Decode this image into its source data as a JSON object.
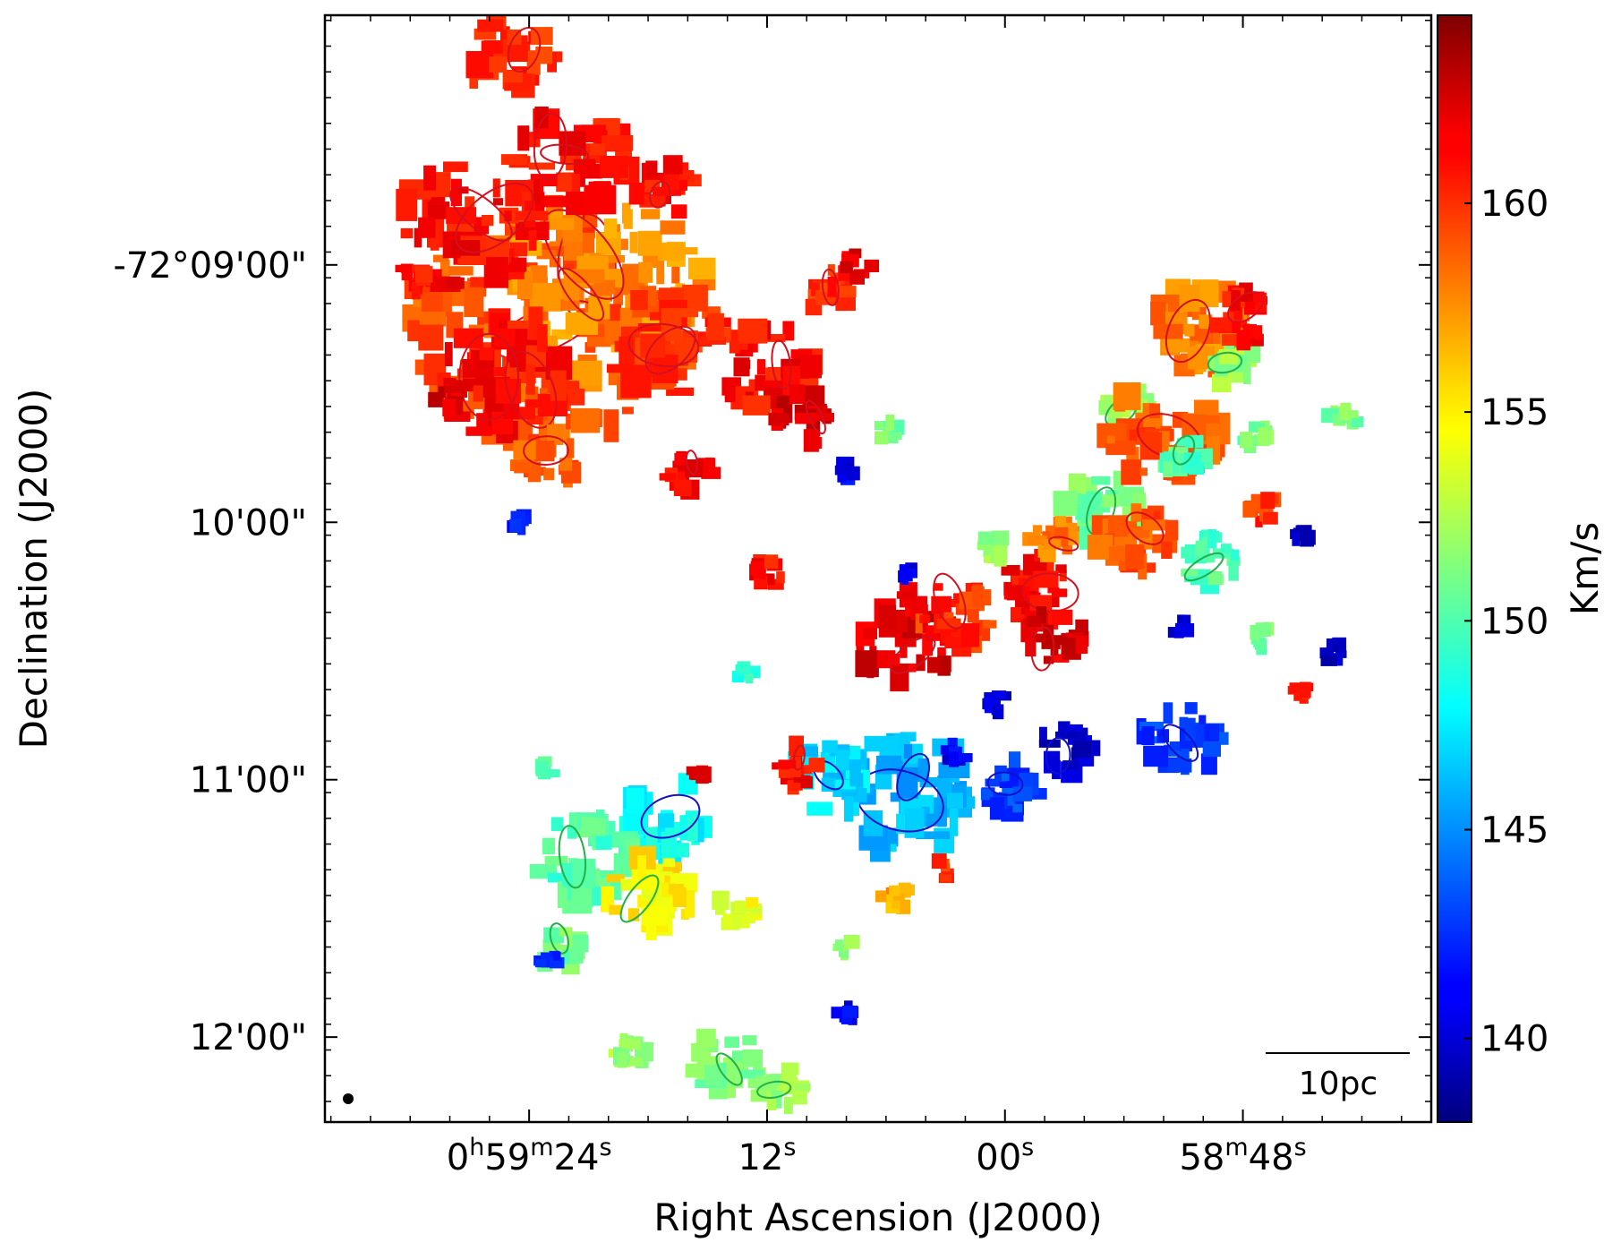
{
  "chart_data": {
    "type": "heatmap",
    "title": "",
    "xlabel": "Right Ascension (J2000)",
    "ylabel": "Declination (J2000)",
    "x_ticks": [
      {
        "label": "0h59m24s",
        "parts": [
          {
            "t": "0",
            "sup": false
          },
          {
            "t": "h",
            "sup": true
          },
          {
            "t": "59",
            "sup": false
          },
          {
            "t": "m",
            "sup": true
          },
          {
            "t": "24",
            "sup": false
          },
          {
            "t": "s",
            "sup": true
          }
        ],
        "value_s": 24
      },
      {
        "label": "12s",
        "parts": [
          {
            "t": "12",
            "sup": false
          },
          {
            "t": "s",
            "sup": true
          }
        ],
        "value_s": 12
      },
      {
        "label": "00s",
        "parts": [
          {
            "t": "00",
            "sup": false
          },
          {
            "t": "s",
            "sup": true
          }
        ],
        "value_s": 0
      },
      {
        "label": "58m48s",
        "parts": [
          {
            "t": "58",
            "sup": false
          },
          {
            "t": "m",
            "sup": true
          },
          {
            "t": "48",
            "sup": false
          },
          {
            "t": "s",
            "sup": true
          }
        ],
        "value_s": -12
      }
    ],
    "y_ticks": [
      {
        "label": "-72°09'00\"",
        "value_arcmin": 9
      },
      {
        "label": "10'00\"",
        "value_arcmin": 10
      },
      {
        "label": "11'00\"",
        "value_arcmin": 11
      },
      {
        "label": "12'00\"",
        "value_arcmin": 12
      }
    ],
    "xlim_s": [
      34.3,
      -21.5
    ],
    "ylim_arcmin": [
      8.03,
      12.33
    ],
    "colorbar": {
      "label": "Km/s",
      "range": [
        138,
        164.5
      ],
      "ticks": [
        140,
        145,
        150,
        155,
        160
      ],
      "colormap": "jet"
    },
    "scalebar": {
      "label": "10pc"
    },
    "clumps": [
      {
        "ra": 23,
        "dec": 9.22,
        "v": 159,
        "size": 7
      },
      {
        "ra": 25,
        "dec": 8.2,
        "v": 160,
        "size": 2.2
      },
      {
        "ra": 22,
        "dec": 8.6,
        "v": 161,
        "size": 3
      },
      {
        "ra": 20,
        "dec": 9.1,
        "v": 157.5,
        "size": 5
      },
      {
        "ra": 17,
        "dec": 9.3,
        "v": 160,
        "size": 3
      },
      {
        "ra": 27,
        "dec": 8.85,
        "v": 161,
        "size": 3.5
      },
      {
        "ra": 25,
        "dec": 9.45,
        "v": 161,
        "size": 3.5
      },
      {
        "ra": 12,
        "dec": 9.4,
        "v": 161,
        "size": 2.5
      },
      {
        "ra": 17,
        "dec": 8.7,
        "v": 161,
        "size": 1.5
      },
      {
        "ra": 9,
        "dec": 9.1,
        "v": 160,
        "size": 1.2
      },
      {
        "ra": 10,
        "dec": 9.6,
        "v": 162,
        "size": 1.5
      },
      {
        "ra": 23,
        "dec": 9.75,
        "v": 159,
        "size": 1.5
      },
      {
        "ra": 16,
        "dec": 9.8,
        "v": 161,
        "size": 1.2
      },
      {
        "ra": 30,
        "dec": 9.05,
        "v": 161,
        "size": 0.8
      },
      {
        "ra": 28,
        "dec": 9.5,
        "v": 162,
        "size": 0.8
      },
      {
        "ra": 12,
        "dec": 10.2,
        "v": 161,
        "size": 0.8
      },
      {
        "ra": 5,
        "dec": 10.45,
        "v": 162,
        "size": 2.5
      },
      {
        "ra": 2.5,
        "dec": 10.35,
        "v": 160,
        "size": 2
      },
      {
        "ra": -1.5,
        "dec": 10.25,
        "v": 161,
        "size": 2
      },
      {
        "ra": -2.5,
        "dec": 10.05,
        "v": 158,
        "size": 1.2
      },
      {
        "ra": -5,
        "dec": 9.95,
        "v": 151,
        "size": 2
      },
      {
        "ra": -6,
        "dec": 9.55,
        "v": 152,
        "size": 1.2
      },
      {
        "ra": -6.5,
        "dec": 10.05,
        "v": 159,
        "size": 2
      },
      {
        "ra": -8,
        "dec": 9.65,
        "v": 159,
        "size": 2.8
      },
      {
        "ra": -10,
        "dec": 9.25,
        "v": 158,
        "size": 2.5
      },
      {
        "ra": -11.5,
        "dec": 9.4,
        "v": 152,
        "size": 1.2
      },
      {
        "ra": -9,
        "dec": 9.75,
        "v": 150,
        "size": 1.2
      },
      {
        "ra": -10.5,
        "dec": 10.15,
        "v": 150,
        "size": 1.5
      },
      {
        "ra": -12,
        "dec": 9.2,
        "v": 161,
        "size": 1.5
      },
      {
        "ra": -2.5,
        "dec": 10.45,
        "v": 162,
        "size": 1.5
      },
      {
        "ra": -13,
        "dec": 9.95,
        "v": 160,
        "size": 0.8
      },
      {
        "ra": -8.8,
        "dec": 10.85,
        "v": 143,
        "size": 2
      },
      {
        "ra": -3,
        "dec": 10.9,
        "v": 140,
        "size": 1.5
      },
      {
        "ra": 5,
        "dec": 11.05,
        "v": 146,
        "size": 3.5
      },
      {
        "ra": 9,
        "dec": 11.0,
        "v": 147,
        "size": 2
      },
      {
        "ra": -0.5,
        "dec": 11.03,
        "v": 143,
        "size": 1.5
      },
      {
        "ra": 10.5,
        "dec": 10.95,
        "v": 161,
        "size": 1.2
      },
      {
        "ra": 17,
        "dec": 11.15,
        "v": 148,
        "size": 2.2
      },
      {
        "ra": 21,
        "dec": 11.3,
        "v": 150,
        "size": 2.5
      },
      {
        "ra": 18,
        "dec": 11.45,
        "v": 155,
        "size": 2.2
      },
      {
        "ra": 13.5,
        "dec": 11.5,
        "v": 154,
        "size": 1
      },
      {
        "ra": 22.5,
        "dec": 11.65,
        "v": 151,
        "size": 1.2
      },
      {
        "ra": 19,
        "dec": 12.05,
        "v": 152,
        "size": 1
      },
      {
        "ra": 14,
        "dec": 12.1,
        "v": 151,
        "size": 1.8
      },
      {
        "ra": 11.5,
        "dec": 12.2,
        "v": 152,
        "size": 1.3
      },
      {
        "ra": 5.5,
        "dec": 11.45,
        "v": 157,
        "size": 0.8
      },
      {
        "ra": 3,
        "dec": 11.35,
        "v": 160,
        "size": 0.6
      },
      {
        "ra": 8,
        "dec": 11.65,
        "v": 152,
        "size": 0.5
      },
      {
        "ra": 8,
        "dec": 11.9,
        "v": 141,
        "size": 0.5
      },
      {
        "ra": 6,
        "dec": 9.65,
        "v": 151,
        "size": 0.6
      },
      {
        "ra": 8,
        "dec": 9.8,
        "v": 141,
        "size": 0.6
      },
      {
        "ra": 5,
        "dec": 10.2,
        "v": 141,
        "size": 0.5
      },
      {
        "ra": 0.5,
        "dec": 10.1,
        "v": 152,
        "size": 0.8
      },
      {
        "ra": -9,
        "dec": 10.4,
        "v": 140,
        "size": 0.6
      },
      {
        "ra": -13,
        "dec": 10.45,
        "v": 151,
        "size": 0.6
      },
      {
        "ra": -15,
        "dec": 10.05,
        "v": 140,
        "size": 0.5
      },
      {
        "ra": -16.5,
        "dec": 10.5,
        "v": 140,
        "size": 0.6
      },
      {
        "ra": -17,
        "dec": 9.6,
        "v": 151,
        "size": 0.8
      },
      {
        "ra": -12.5,
        "dec": 9.65,
        "v": 151,
        "size": 0.8
      },
      {
        "ra": -15,
        "dec": 10.65,
        "v": 161,
        "size": 0.5
      },
      {
        "ra": 15.5,
        "dec": 10.95,
        "v": 162,
        "size": 0.6
      },
      {
        "ra": 13,
        "dec": 10.6,
        "v": 149,
        "size": 0.5
      },
      {
        "ra": 2.5,
        "dec": 10.9,
        "v": 141,
        "size": 0.6
      },
      {
        "ra": 0.5,
        "dec": 10.7,
        "v": 140,
        "size": 0.6
      },
      {
        "ra": 23,
        "dec": 11.7,
        "v": 142,
        "size": 0.5
      },
      {
        "ra": 23,
        "dec": 10.95,
        "v": 150,
        "size": 0.5
      },
      {
        "ra": 7.5,
        "dec": 9.0,
        "v": 162,
        "size": 0.8
      },
      {
        "ra": 24.5,
        "dec": 10.0,
        "v": 142,
        "size": 0.4
      }
    ]
  }
}
